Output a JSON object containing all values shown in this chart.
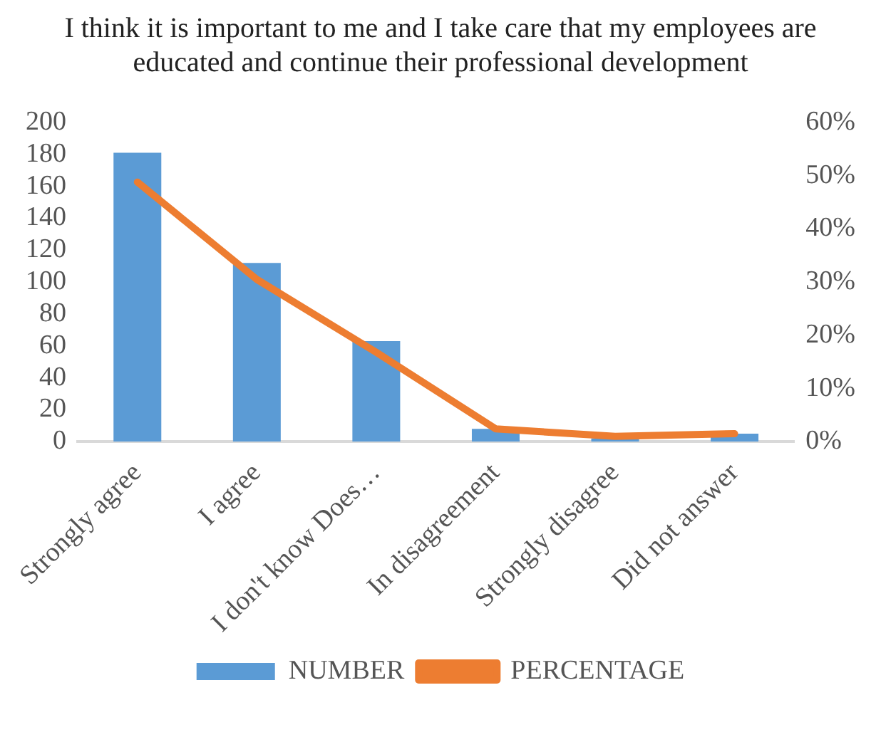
{
  "chart_data": {
    "type": "bar",
    "title": "I think it is important to me and I take care that my employees are educated and continue their professional development",
    "categories": [
      "Strongly agree",
      "I agree",
      "I don't know Does…",
      "In disagreement",
      "Strongly disagree",
      "Did not answer"
    ],
    "series": [
      {
        "name": "NUMBER",
        "color": "#5b9bd5",
        "values": [
          181,
          112,
          63,
          8,
          2,
          5
        ]
      },
      {
        "name": "PERCENTAGE",
        "type": "line",
        "axis": "y2",
        "color": "#ed7d31",
        "values": [
          48.8,
          30.5,
          16.8,
          2.4,
          1,
          1.5
        ],
        "marker": "none"
      }
    ],
    "ylim": [
      0,
      200
    ],
    "yticks": [
      0,
      20,
      40,
      60,
      80,
      100,
      120,
      140,
      160,
      180,
      200
    ],
    "y2lim": [
      0,
      60
    ],
    "y2ticks": [
      {
        "value": 0,
        "label": "0%"
      },
      {
        "value": 10,
        "label": "10%"
      },
      {
        "value": 20,
        "label": "20%"
      },
      {
        "value": 30,
        "label": "30%"
      },
      {
        "value": 40,
        "label": "40%"
      },
      {
        "value": 50,
        "label": "50%"
      },
      {
        "value": 60,
        "label": "60%"
      }
    ],
    "grid": false,
    "legend": "bottom"
  }
}
